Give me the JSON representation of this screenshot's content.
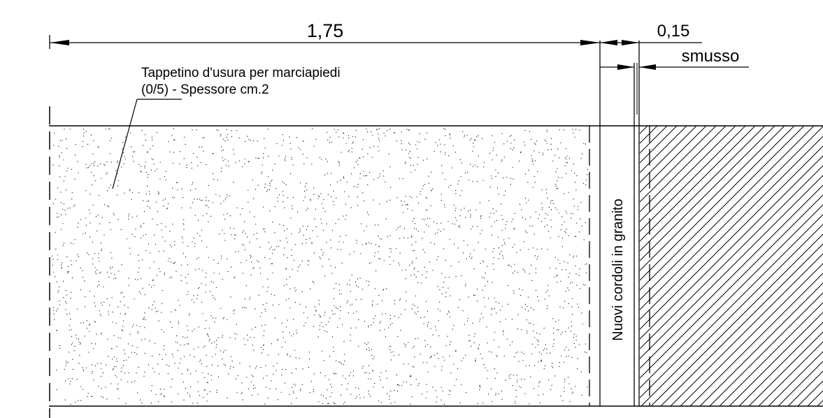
{
  "dimensions": {
    "main_width": "1,75",
    "curb_width": "0,15",
    "bevel_label": "smusso"
  },
  "annotations": {
    "surface_layer_line1": "Tappetino d'usura per marciapiedi",
    "surface_layer_line2": "(0/5) - Spessore cm.2",
    "curb_label": "Nuovi cordoli in granito"
  },
  "colors": {
    "line": "#000000",
    "background": "#ffffff"
  }
}
